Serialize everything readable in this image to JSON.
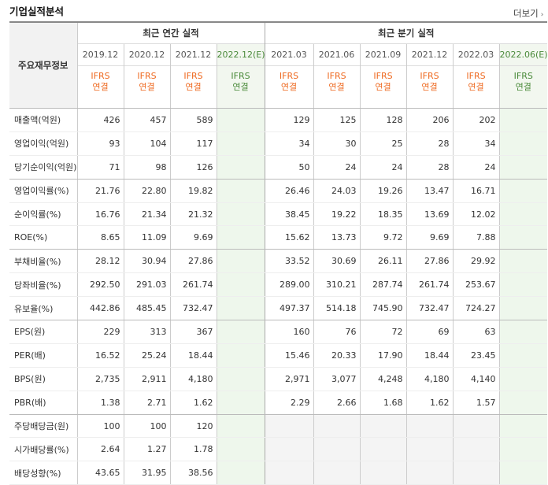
{
  "header": {
    "title": "기업실적분석",
    "more_label": "더보기",
    "more_icon": "chevron-right-icon"
  },
  "table": {
    "row_header": "주요재무정보",
    "group_annual": "최근 연간 실적",
    "group_quarter": "최근 분기 실적",
    "periods": [
      "2019.12",
      "2020.12",
      "2021.12",
      "2022.12(E)",
      "2021.03",
      "2021.06",
      "2021.09",
      "2021.12",
      "2022.03",
      "2022.06(E)"
    ],
    "ifrs_top": "IFRS",
    "ifrs_bottom": "연결",
    "rows": [
      {
        "label": "매출액(억원)",
        "values": [
          "426",
          "457",
          "589",
          "",
          "129",
          "125",
          "128",
          "206",
          "202",
          ""
        ]
      },
      {
        "label": "영업이익(억원)",
        "values": [
          "93",
          "104",
          "117",
          "",
          "34",
          "30",
          "25",
          "28",
          "34",
          ""
        ]
      },
      {
        "label": "당기순이익(억원)",
        "values": [
          "71",
          "98",
          "126",
          "",
          "50",
          "24",
          "24",
          "28",
          "24",
          ""
        ]
      },
      {
        "label": "영업이익률(%)",
        "values": [
          "21.76",
          "22.80",
          "19.82",
          "",
          "26.46",
          "24.03",
          "19.26",
          "13.47",
          "16.71",
          ""
        ]
      },
      {
        "label": "순이익률(%)",
        "values": [
          "16.76",
          "21.34",
          "21.32",
          "",
          "38.45",
          "19.22",
          "18.35",
          "13.69",
          "12.02",
          ""
        ]
      },
      {
        "label": "ROE(%)",
        "values": [
          "8.65",
          "11.09",
          "9.69",
          "",
          "15.62",
          "13.73",
          "9.72",
          "9.69",
          "7.88",
          ""
        ]
      },
      {
        "label": "부채비율(%)",
        "values": [
          "28.12",
          "30.94",
          "27.86",
          "",
          "33.52",
          "30.69",
          "26.11",
          "27.86",
          "29.92",
          ""
        ]
      },
      {
        "label": "당좌비율(%)",
        "values": [
          "292.50",
          "291.03",
          "261.74",
          "",
          "289.00",
          "310.21",
          "287.74",
          "261.74",
          "253.67",
          ""
        ]
      },
      {
        "label": "유보율(%)",
        "values": [
          "442.86",
          "485.45",
          "732.47",
          "",
          "497.37",
          "514.18",
          "745.90",
          "732.47",
          "724.27",
          ""
        ]
      },
      {
        "label": "EPS(원)",
        "values": [
          "229",
          "313",
          "367",
          "",
          "160",
          "76",
          "72",
          "69",
          "63",
          ""
        ]
      },
      {
        "label": "PER(배)",
        "values": [
          "16.52",
          "25.24",
          "18.44",
          "",
          "15.46",
          "20.33",
          "17.90",
          "18.44",
          "23.45",
          ""
        ]
      },
      {
        "label": "BPS(원)",
        "values": [
          "2,735",
          "2,911",
          "4,180",
          "",
          "2,971",
          "3,077",
          "4,248",
          "4,180",
          "4,140",
          ""
        ]
      },
      {
        "label": "PBR(배)",
        "values": [
          "1.38",
          "2.71",
          "1.62",
          "",
          "2.29",
          "2.66",
          "1.68",
          "1.62",
          "1.57",
          ""
        ]
      },
      {
        "label": "주당배당금(원)",
        "values": [
          "100",
          "100",
          "120",
          "",
          "",
          "",
          "",
          "",
          "",
          ""
        ]
      },
      {
        "label": "시가배당률(%)",
        "values": [
          "2.64",
          "1.27",
          "1.78",
          "",
          "",
          "",
          "",
          "",
          "",
          ""
        ]
      },
      {
        "label": "배당성향(%)",
        "values": [
          "43.65",
          "31.95",
          "38.56",
          "",
          "",
          "",
          "",
          "",
          "",
          ""
        ]
      }
    ],
    "group_break_after": [
      2,
      5,
      8,
      12
    ]
  },
  "colors": {
    "ifrs": "#ee6a21",
    "estimate_bg": "#eef7ec",
    "estimate_text": "#4a8a3a",
    "empty_bg": "#f4f4f4"
  }
}
